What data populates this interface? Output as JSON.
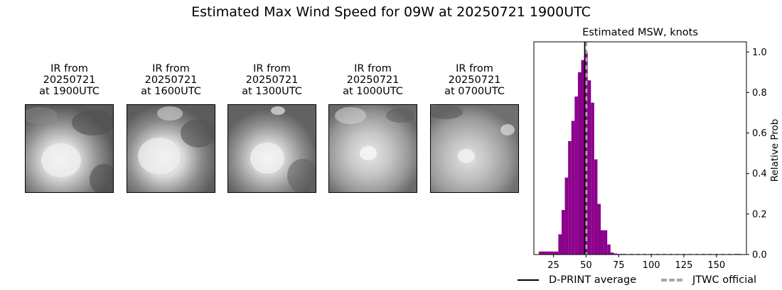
{
  "figure": {
    "title": "Estimated Max Wind Speed for 09W at 20250721 1900UTC"
  },
  "ir_panels": [
    {
      "line1": "IR from",
      "line2": "20250721",
      "line3": "at 1900UTC"
    },
    {
      "line1": "IR from",
      "line2": "20250721",
      "line3": "at 1600UTC"
    },
    {
      "line1": "IR from",
      "line2": "20250721",
      "line3": "at 1300UTC"
    },
    {
      "line1": "IR from",
      "line2": "20250721",
      "line3": "at 1000UTC"
    },
    {
      "line1": "IR from",
      "line2": "20250721",
      "line3": "at 0700UTC"
    }
  ],
  "chart_data": {
    "type": "bar",
    "title": "Estimated MSW, knots",
    "xlabel": "",
    "ylabel": "Relative Prob",
    "xlim": [
      10,
      173
    ],
    "ylim": [
      0,
      1.05
    ],
    "xticks": [
      25,
      50,
      75,
      100,
      125,
      150
    ],
    "yticks": [
      0.0,
      0.2,
      0.4,
      0.6,
      0.8,
      1.0
    ],
    "bin_width": 2.5,
    "bins": [
      {
        "x": 15,
        "y": 0.015
      },
      {
        "x": 17.5,
        "y": 0.015
      },
      {
        "x": 20,
        "y": 0.015
      },
      {
        "x": 22.5,
        "y": 0.015
      },
      {
        "x": 25,
        "y": 0.015
      },
      {
        "x": 27.5,
        "y": 0.015
      },
      {
        "x": 30,
        "y": 0.1
      },
      {
        "x": 32.5,
        "y": 0.22
      },
      {
        "x": 35,
        "y": 0.38
      },
      {
        "x": 37.5,
        "y": 0.56
      },
      {
        "x": 40,
        "y": 0.66
      },
      {
        "x": 42.5,
        "y": 0.78
      },
      {
        "x": 45,
        "y": 0.9
      },
      {
        "x": 47.5,
        "y": 0.96
      },
      {
        "x": 50,
        "y": 1.0
      },
      {
        "x": 52.5,
        "y": 0.86
      },
      {
        "x": 55,
        "y": 0.75
      },
      {
        "x": 57.5,
        "y": 0.47
      },
      {
        "x": 60,
        "y": 0.25
      },
      {
        "x": 62.5,
        "y": 0.12
      },
      {
        "x": 65,
        "y": 0.12
      },
      {
        "x": 67.5,
        "y": 0.05
      },
      {
        "x": 70,
        "y": 0.01
      },
      {
        "x": 72.5,
        "y": 0.005
      },
      {
        "x": 75,
        "y": 0.003
      },
      {
        "x": 77.5,
        "y": 0.003
      },
      {
        "x": 80,
        "y": 0.003
      },
      {
        "x": 85,
        "y": 0.003
      },
      {
        "x": 90,
        "y": 0.003
      },
      {
        "x": 95,
        "y": 0.003
      },
      {
        "x": 100,
        "y": 0.003
      },
      {
        "x": 105,
        "y": 0.003
      },
      {
        "x": 110,
        "y": 0.003
      },
      {
        "x": 115,
        "y": 0.003
      },
      {
        "x": 120,
        "y": 0.003
      },
      {
        "x": 125,
        "y": 0.003
      },
      {
        "x": 130,
        "y": 0.003
      },
      {
        "x": 135,
        "y": 0.003
      },
      {
        "x": 140,
        "y": 0.003
      },
      {
        "x": 145,
        "y": 0.003
      },
      {
        "x": 150,
        "y": 0.003
      },
      {
        "x": 155,
        "y": 0.003
      },
      {
        "x": 160,
        "y": 0.003
      },
      {
        "x": 165,
        "y": 0.003
      },
      {
        "x": 167.5,
        "y": 0.003
      }
    ],
    "dprint_average": 49,
    "jtwc_official": 50,
    "legend": [
      {
        "label": "D-PRINT average",
        "style": "solid",
        "color": "#000000"
      },
      {
        "label": "JTWC official",
        "style": "dashed",
        "color": "#a8a8a8"
      }
    ],
    "bar_color": "#8b008b"
  }
}
